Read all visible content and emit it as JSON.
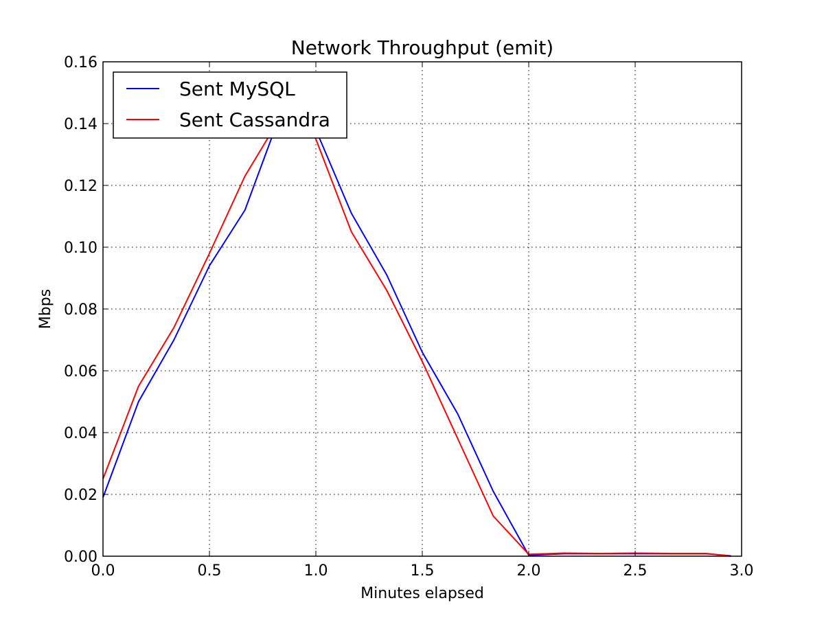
{
  "chart_data": {
    "type": "line",
    "title": "Network Throughput (emit)",
    "xlabel": "Minutes elapsed",
    "ylabel": "Mbps",
    "xlim": [
      0.0,
      3.0
    ],
    "ylim": [
      0.0,
      0.16
    ],
    "xticks": [
      "0.0",
      "0.5",
      "1.0",
      "1.5",
      "2.0",
      "2.5",
      "3.0"
    ],
    "yticks": [
      "0.00",
      "0.02",
      "0.04",
      "0.06",
      "0.08",
      "0.10",
      "0.12",
      "0.14",
      "0.16"
    ],
    "grid": true,
    "legend_position": "upper-left",
    "series": [
      {
        "name": "Sent MySQL",
        "color": "#0000ff",
        "x": [
          0.0,
          0.1667,
          0.3333,
          0.5,
          0.6667,
          0.8333,
          0.9167,
          1.0,
          1.1667,
          1.3333,
          1.5,
          1.6667,
          1.8333,
          2.0,
          2.1667,
          2.3333,
          2.5,
          2.6667,
          2.8333,
          2.95
        ],
        "y": [
          0.019,
          0.05,
          0.07,
          0.094,
          0.112,
          0.143,
          0.147,
          0.138,
          0.111,
          0.091,
          0.066,
          0.046,
          0.021,
          0.0003,
          0.0008,
          0.0008,
          0.0008,
          0.0008,
          0.0008,
          0.0001
        ]
      },
      {
        "name": "Sent Cassandra",
        "color": "#ff0000",
        "x": [
          0.0,
          0.1667,
          0.3333,
          0.5,
          0.6667,
          0.8333,
          0.9167,
          1.0,
          1.1667,
          1.3333,
          1.5,
          1.6667,
          1.8333,
          2.0,
          2.1667,
          2.3333,
          2.5,
          2.6667,
          2.8333,
          2.95
        ],
        "y": [
          0.025,
          0.055,
          0.074,
          0.098,
          0.123,
          0.142,
          0.146,
          0.135,
          0.105,
          0.086,
          0.063,
          0.038,
          0.013,
          0.0006,
          0.001,
          0.0009,
          0.001,
          0.0009,
          0.0009,
          0.0
        ]
      }
    ]
  }
}
